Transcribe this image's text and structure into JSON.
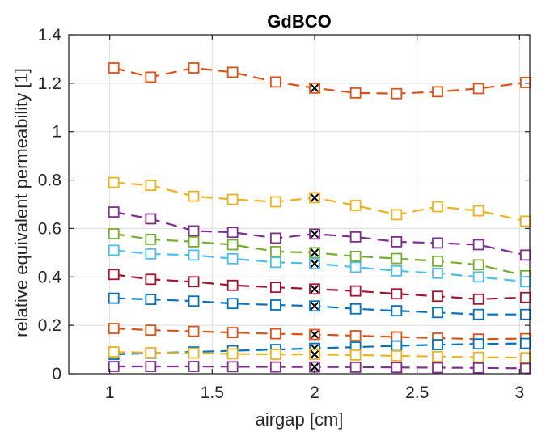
{
  "chart_data": {
    "type": "line",
    "title": "GdBCO",
    "xlabel": "airgap [cm]",
    "ylabel": "relative equivalent permeability [1]",
    "xlim": [
      0.8,
      3.05
    ],
    "ylim": [
      0,
      1.4
    ],
    "xticks": [
      "1",
      "1.5",
      "2",
      "2.5",
      "3"
    ],
    "xtick_values": [
      1,
      1.5,
      2,
      2.5,
      3
    ],
    "yticks": [
      "0",
      "0.2",
      "0.4",
      "0.6",
      "0.8",
      "1",
      "1.2",
      "1.4"
    ],
    "ytick_values": [
      0,
      0.2,
      0.4,
      0.6,
      0.8,
      1,
      1.2,
      1.4
    ],
    "grid": true,
    "marker": "square",
    "line_style": "dashed",
    "highlight_marker": "x",
    "highlight_x": 2,
    "x": [
      1.02,
      1.2,
      1.41,
      1.6,
      1.81,
      2.0,
      2.2,
      2.4,
      2.6,
      2.8,
      3.03
    ],
    "series": [
      {
        "color": "#D95319",
        "values": [
          1.263,
          1.225,
          1.263,
          1.245,
          1.205,
          1.18,
          1.16,
          1.157,
          1.165,
          1.178,
          1.203
        ]
      },
      {
        "color": "#EDB120",
        "values": [
          0.79,
          0.778,
          0.733,
          0.72,
          0.71,
          0.727,
          0.695,
          0.657,
          0.69,
          0.673,
          0.63
        ]
      },
      {
        "color": "#7E2F8E",
        "values": [
          0.668,
          0.64,
          0.59,
          0.584,
          0.56,
          0.577,
          0.565,
          0.545,
          0.54,
          0.533,
          0.49
        ]
      },
      {
        "color": "#77AC30",
        "values": [
          0.578,
          0.555,
          0.545,
          0.533,
          0.505,
          0.5,
          0.485,
          0.476,
          0.465,
          0.45,
          0.405
        ]
      },
      {
        "color": "#4DBEEE",
        "values": [
          0.51,
          0.495,
          0.49,
          0.475,
          0.46,
          0.455,
          0.44,
          0.425,
          0.415,
          0.4,
          0.38
        ]
      },
      {
        "color": "#A2142F",
        "values": [
          0.41,
          0.39,
          0.38,
          0.365,
          0.357,
          0.35,
          0.342,
          0.33,
          0.32,
          0.308,
          0.315
        ]
      },
      {
        "color": "#0072BD",
        "values": [
          0.312,
          0.307,
          0.3,
          0.29,
          0.284,
          0.28,
          0.268,
          0.26,
          0.253,
          0.245,
          0.245
        ]
      },
      {
        "color": "#D95319",
        "values": [
          0.187,
          0.18,
          0.175,
          0.17,
          0.165,
          0.162,
          0.157,
          0.152,
          0.147,
          0.143,
          0.145
        ]
      },
      {
        "color": "#0072BD",
        "values": [
          0.08,
          0.085,
          0.09,
          0.095,
          0.1,
          0.105,
          0.11,
          0.115,
          0.12,
          0.123,
          0.125
        ]
      },
      {
        "color": "#EDB120",
        "values": [
          0.09,
          0.087,
          0.085,
          0.082,
          0.08,
          0.08,
          0.077,
          0.074,
          0.071,
          0.068,
          0.066
        ]
      },
      {
        "color": "#7E2F8E",
        "values": [
          0.03,
          0.03,
          0.03,
          0.029,
          0.028,
          0.028,
          0.027,
          0.026,
          0.025,
          0.024,
          0.022
        ]
      }
    ]
  }
}
